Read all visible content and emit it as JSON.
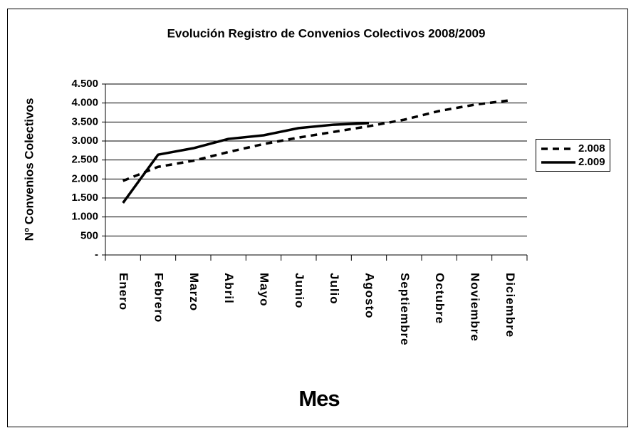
{
  "chart_data": {
    "type": "line",
    "title": "Evolución Registro de Convenios Colectivos 2008/2009",
    "xlabel": "Mes",
    "ylabel": "Nº Convenios Colectivos",
    "categories": [
      "Enero",
      "Febrero",
      "Marzo",
      "Abril",
      "Mayo",
      "Junio",
      "Julio",
      "Agosto",
      "Septiembre",
      "Octubre",
      "Noviembre",
      "Diciembre"
    ],
    "series": [
      {
        "name": "2.008",
        "color": "#000000",
        "dash": "dashed",
        "values": [
          1950,
          2320,
          2480,
          2710,
          2920,
          3090,
          3240,
          3390,
          3560,
          3790,
          3955,
          4070
        ]
      },
      {
        "name": "2.009",
        "color": "#000000",
        "dash": "solid",
        "values": [
          1370,
          2640,
          2810,
          3055,
          3150,
          3340,
          3430,
          3470,
          null,
          null,
          null,
          null
        ]
      }
    ],
    "ylim": [
      0,
      4500
    ],
    "yticks": [
      {
        "value": 0,
        "label": "-"
      },
      500,
      {
        "value": 1000,
        "label": "1.000"
      },
      {
        "value": 1500,
        "label": "1.500"
      },
      {
        "value": 2000,
        "label": "2.000"
      },
      {
        "value": 2500,
        "label": "2.500"
      },
      {
        "value": 3000,
        "label": "3.000"
      },
      {
        "value": 3500,
        "label": "3.500"
      },
      {
        "value": 4000,
        "label": "4.000"
      },
      {
        "value": 4500,
        "label": "4.500"
      }
    ],
    "grid": true,
    "legend": "right"
  }
}
